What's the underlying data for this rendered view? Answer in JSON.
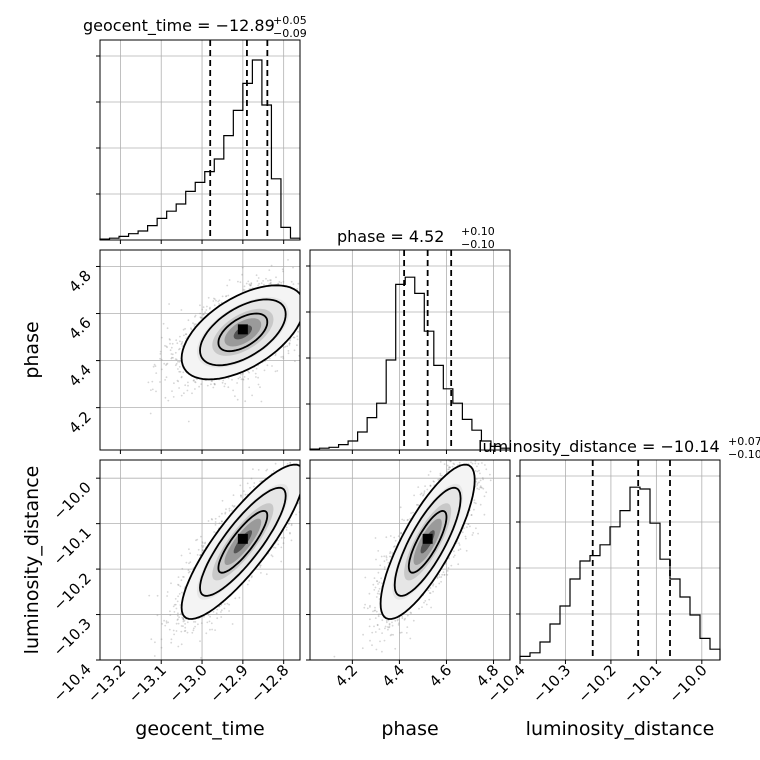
{
  "chart_data": {
    "type": "corner",
    "parameters": [
      {
        "name": "geocent_time",
        "range": [
          -13.25,
          -12.76
        ],
        "ticks": [
          -13.2,
          -13.1,
          -13.0,
          -12.9,
          -12.8
        ],
        "tick_labels": [
          "−13.2",
          "−13.1",
          "−13.0",
          "−12.9",
          "−12.8"
        ],
        "quantiles": [
          -12.98,
          -12.89,
          -12.84
        ],
        "title": {
          "main": "geocent_time = −12.89",
          "sup": "+0.05",
          "sub": "−0.09"
        },
        "hist": [
          0.005,
          0.01,
          0.02,
          0.035,
          0.05,
          0.08,
          0.12,
          0.16,
          0.2,
          0.27,
          0.32,
          0.38,
          0.45,
          0.58,
          0.72,
          0.87,
          1.0,
          0.75,
          0.34,
          0.07,
          0.01
        ]
      },
      {
        "name": "phase",
        "range": [
          4.02,
          4.87
        ],
        "ticks": [
          4.2,
          4.4,
          4.6,
          4.8
        ],
        "tick_labels": [
          "4.2",
          "4.4",
          "4.6",
          "4.8"
        ],
        "quantiles": [
          4.42,
          4.52,
          4.62
        ],
        "title": {
          "main": "phase = 4.52",
          "sup": "+0.10",
          "sub": "−0.10"
        },
        "hist": [
          0.005,
          0.01,
          0.015,
          0.03,
          0.05,
          0.1,
          0.18,
          0.26,
          0.5,
          0.92,
          0.96,
          0.87,
          0.66,
          0.47,
          0.34,
          0.26,
          0.17,
          0.11,
          0.05,
          0.02,
          0.01
        ]
      },
      {
        "name": "luminosity_distance",
        "range": [
          -10.4,
          -9.96
        ],
        "ticks": [
          -10.4,
          -10.3,
          -10.2,
          -10.1,
          -10.0
        ],
        "tick_labels": [
          "−10.4",
          "−10.3",
          "−10.2",
          "−10.1",
          "−10.0"
        ],
        "quantiles": [
          -10.24,
          -10.14,
          -10.07
        ],
        "title": {
          "main": "luminosity_distance = −10.14",
          "sup": "+0.07",
          "sub": "−0.10"
        },
        "hist": [
          0.02,
          0.04,
          0.1,
          0.2,
          0.3,
          0.45,
          0.55,
          0.58,
          0.64,
          0.74,
          0.83,
          0.96,
          0.95,
          0.76,
          0.56,
          0.45,
          0.35,
          0.25,
          0.12,
          0.06
        ]
      }
    ],
    "mean": [
      -12.9,
      4.52,
      -10.14
    ],
    "sd": [
      0.075,
      0.1,
      0.085
    ],
    "rho": [
      [
        1,
        0.55,
        0.85
      ],
      [
        0.55,
        1,
        0.8
      ],
      [
        0.85,
        0.8,
        1
      ]
    ],
    "grid": true
  }
}
